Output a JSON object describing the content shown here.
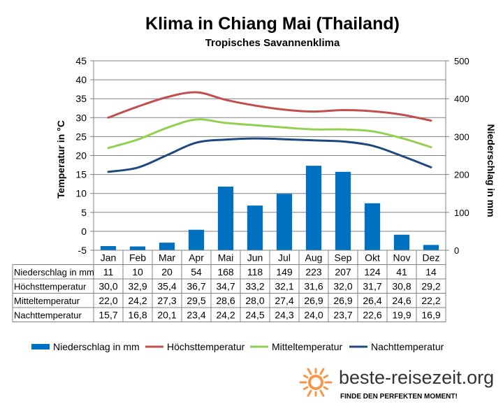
{
  "chart_data": {
    "type": "bar",
    "title": "Klima in Chiang Mai (Thailand)",
    "subtitle": "Tropisches Savannenklima",
    "ylabel_left": "Temperatur in °C",
    "ylabel_right": "Niederschlag in mm",
    "ylim_left": [
      -5,
      45
    ],
    "ylim_right": [
      0,
      500
    ],
    "yticks_left": [
      "-5",
      "0",
      "5",
      "10",
      "15",
      "20",
      "25",
      "30",
      "35",
      "40",
      "45"
    ],
    "yticks_right": [
      "0",
      "100",
      "200",
      "300",
      "400",
      "500"
    ],
    "grid": true,
    "legend_position": "bottom",
    "categories": [
      "Jan",
      "Feb",
      "Mar",
      "Apr",
      "Mai",
      "Jun",
      "Jul",
      "Aug",
      "Sep",
      "Okt",
      "Nov",
      "Dez"
    ],
    "series": [
      {
        "name": "Niederschlag in mm",
        "type": "bar",
        "axis": "right",
        "color": "#0070C0",
        "values": [
          11,
          10,
          20,
          54,
          168,
          118,
          149,
          223,
          207,
          124,
          41,
          14
        ],
        "labels": [
          "11",
          "10",
          "20",
          "54",
          "168",
          "118",
          "149",
          "223",
          "207",
          "124",
          "41",
          "14"
        ]
      },
      {
        "name": "Höchsttemperatur",
        "type": "line",
        "axis": "left",
        "color": "#C0504D",
        "values": [
          30.0,
          32.9,
          35.4,
          36.7,
          34.7,
          33.2,
          32.1,
          31.6,
          32.0,
          31.7,
          30.8,
          29.2
        ],
        "labels": [
          "30,0",
          "32,9",
          "35,4",
          "36,7",
          "34,7",
          "33,2",
          "32,1",
          "31,6",
          "32,0",
          "31,7",
          "30,8",
          "29,2"
        ]
      },
      {
        "name": "Mitteltemperatur",
        "type": "line",
        "axis": "left",
        "color": "#92D050",
        "values": [
          22.0,
          24.2,
          27.3,
          29.5,
          28.6,
          28.0,
          27.4,
          26.9,
          26.9,
          26.4,
          24.6,
          22.2
        ],
        "labels": [
          "22,0",
          "24,2",
          "27,3",
          "29,5",
          "28,6",
          "28,0",
          "27,4",
          "26,9",
          "26,9",
          "26,4",
          "24,6",
          "22,2"
        ]
      },
      {
        "name": "Nachttemperatur",
        "type": "line",
        "axis": "left",
        "color": "#1F497D",
        "values": [
          15.7,
          16.8,
          20.1,
          23.4,
          24.2,
          24.5,
          24.3,
          24.0,
          23.7,
          22.6,
          19.9,
          16.9
        ],
        "labels": [
          "15,7",
          "16,8",
          "20,1",
          "23,4",
          "24,2",
          "24,5",
          "24,3",
          "24,0",
          "23,7",
          "22,6",
          "19,9",
          "16,9"
        ]
      }
    ]
  },
  "branding": {
    "site": "beste-reisezeit.org",
    "tagline": "FINDE DEN PERFEKTEN MOMENT!",
    "logo_icon": "sun-icon",
    "logo_color": "#F79646"
  }
}
